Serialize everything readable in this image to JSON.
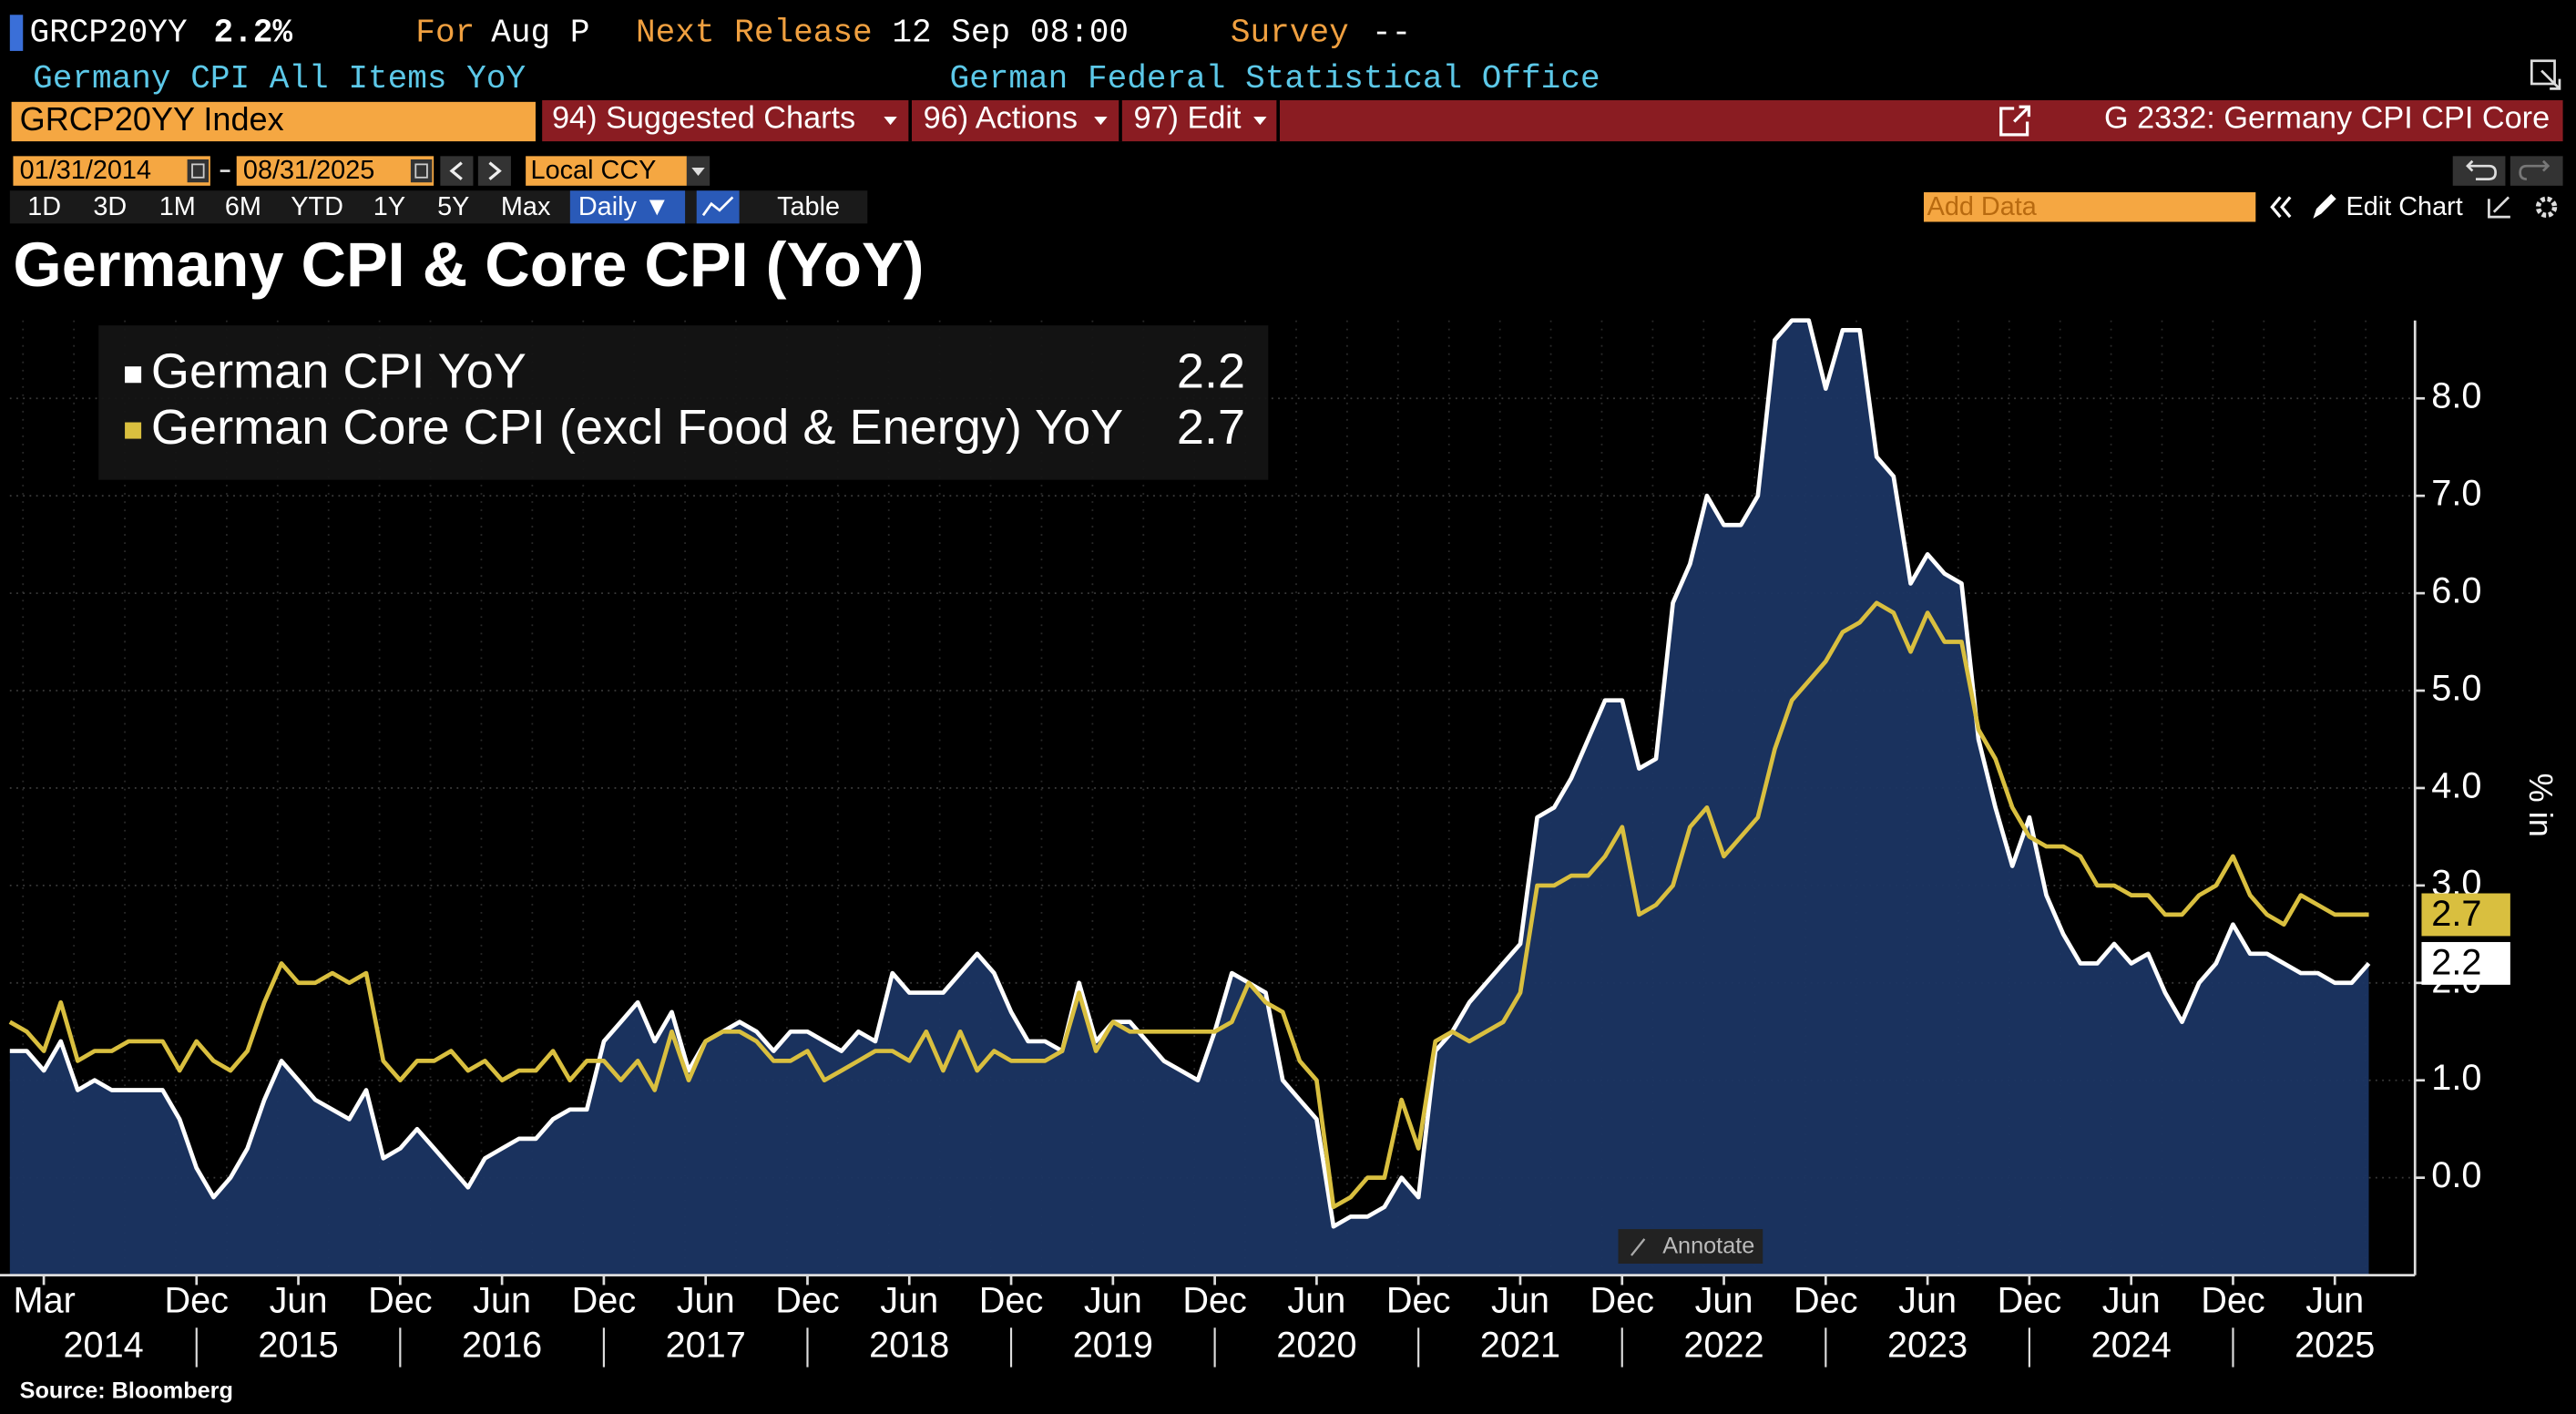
{
  "header": {
    "ticker": "GRCP20YY",
    "last": "2.2%",
    "for_label": "For",
    "period": "Aug P",
    "next_release_label": "Next Release",
    "next_release": "12 Sep 08:00",
    "survey_label": "Survey",
    "survey": "--",
    "description": "Germany CPI All Items YoY",
    "source_agency": "German Federal Statistical Office"
  },
  "command_bar": {
    "security": "GRCP20YY Index",
    "menus": [
      "94) Suggested Charts",
      "96) Actions",
      "97) Edit"
    ],
    "related": "G 2332: Germany CPI CPI Core"
  },
  "date_bar": {
    "start": "01/31/2014",
    "end": "08/31/2025",
    "currency": "Local CCY"
  },
  "toolbar": {
    "ranges": [
      "1D",
      "3D",
      "1M",
      "6M",
      "YTD",
      "1Y",
      "5Y",
      "Max"
    ],
    "frequency": "Daily ▼",
    "table": "Table",
    "add_data": "Add Data",
    "edit_chart": "Edit Chart"
  },
  "annotate": "Annotate",
  "chart_data": {
    "type": "line",
    "title": "Germany CPI & Core CPI (YoY)",
    "y_label": "% in",
    "legend": "upper left",
    "grid": true,
    "x": [
      "2014-01",
      "2014-02",
      "2014-03",
      "2014-04",
      "2014-05",
      "2014-06",
      "2014-07",
      "2014-08",
      "2014-09",
      "2014-10",
      "2014-11",
      "2014-12",
      "2015-01",
      "2015-02",
      "2015-03",
      "2015-04",
      "2015-05",
      "2015-06",
      "2015-07",
      "2015-08",
      "2015-09",
      "2015-10",
      "2015-11",
      "2015-12",
      "2016-01",
      "2016-02",
      "2016-03",
      "2016-04",
      "2016-05",
      "2016-06",
      "2016-07",
      "2016-08",
      "2016-09",
      "2016-10",
      "2016-11",
      "2016-12",
      "2017-01",
      "2017-02",
      "2017-03",
      "2017-04",
      "2017-05",
      "2017-06",
      "2017-07",
      "2017-08",
      "2017-09",
      "2017-10",
      "2017-11",
      "2017-12",
      "2018-01",
      "2018-02",
      "2018-03",
      "2018-04",
      "2018-05",
      "2018-06",
      "2018-07",
      "2018-08",
      "2018-09",
      "2018-10",
      "2018-11",
      "2018-12",
      "2019-01",
      "2019-02",
      "2019-03",
      "2019-04",
      "2019-05",
      "2019-06",
      "2019-07",
      "2019-08",
      "2019-09",
      "2019-10",
      "2019-11",
      "2019-12",
      "2020-01",
      "2020-02",
      "2020-03",
      "2020-04",
      "2020-05",
      "2020-06",
      "2020-07",
      "2020-08",
      "2020-09",
      "2020-10",
      "2020-11",
      "2020-12",
      "2021-01",
      "2021-02",
      "2021-03",
      "2021-04",
      "2021-05",
      "2021-06",
      "2021-07",
      "2021-08",
      "2021-09",
      "2021-10",
      "2021-11",
      "2021-12",
      "2022-01",
      "2022-02",
      "2022-03",
      "2022-04",
      "2022-05",
      "2022-06",
      "2022-07",
      "2022-08",
      "2022-09",
      "2022-10",
      "2022-11",
      "2022-12",
      "2023-01",
      "2023-02",
      "2023-03",
      "2023-04",
      "2023-05",
      "2023-06",
      "2023-07",
      "2023-08",
      "2023-09",
      "2023-10",
      "2023-11",
      "2023-12",
      "2024-01",
      "2024-02",
      "2024-03",
      "2024-04",
      "2024-05",
      "2024-06",
      "2024-07",
      "2024-08",
      "2024-09",
      "2024-10",
      "2024-11",
      "2024-12",
      "2025-01",
      "2025-02",
      "2025-03",
      "2025-04",
      "2025-05",
      "2025-06",
      "2025-07",
      "2025-08"
    ],
    "series": [
      {
        "name": "German CPI YoY",
        "color": "#ffffff",
        "fill": "#1b3563",
        "last_value": 2.2,
        "values": [
          1.3,
          1.3,
          1.1,
          1.4,
          0.9,
          1.0,
          0.9,
          0.9,
          0.9,
          0.9,
          0.6,
          0.1,
          -0.2,
          0.0,
          0.3,
          0.8,
          1.2,
          1.0,
          0.8,
          0.7,
          0.6,
          0.9,
          0.2,
          0.3,
          0.5,
          0.3,
          0.1,
          -0.1,
          0.2,
          0.3,
          0.4,
          0.4,
          0.6,
          0.7,
          0.7,
          1.4,
          1.6,
          1.8,
          1.4,
          1.7,
          1.1,
          1.4,
          1.5,
          1.6,
          1.5,
          1.3,
          1.5,
          1.5,
          1.4,
          1.3,
          1.5,
          1.4,
          2.1,
          1.9,
          1.9,
          1.9,
          2.1,
          2.3,
          2.1,
          1.7,
          1.4,
          1.4,
          1.3,
          2.0,
          1.4,
          1.6,
          1.6,
          1.4,
          1.2,
          1.1,
          1.0,
          1.5,
          2.1,
          2.0,
          1.9,
          1.0,
          0.8,
          0.6,
          -0.5,
          -0.4,
          -0.4,
          -0.3,
          0.0,
          -0.2,
          1.3,
          1.5,
          1.8,
          2.0,
          2.2,
          2.4,
          3.7,
          3.8,
          4.1,
          4.5,
          4.9,
          4.9,
          4.2,
          4.3,
          5.9,
          6.3,
          7.0,
          6.7,
          6.7,
          7.0,
          8.6,
          8.8,
          8.8,
          8.1,
          8.7,
          8.7,
          7.4,
          7.2,
          6.1,
          6.4,
          6.2,
          6.1,
          4.5,
          3.8,
          3.2,
          3.7,
          2.9,
          2.5,
          2.2,
          2.2,
          2.4,
          2.2,
          2.3,
          1.9,
          1.6,
          2.0,
          2.2,
          2.6,
          2.3,
          2.3,
          2.2,
          2.1,
          2.1,
          2.0,
          2.0,
          2.2
        ]
      },
      {
        "name": "German Core CPI (excl Food & Energy) YoY",
        "color": "#d9bf3f",
        "last_value": 2.7,
        "values": [
          1.6,
          1.5,
          1.3,
          1.8,
          1.2,
          1.3,
          1.3,
          1.4,
          1.4,
          1.4,
          1.1,
          1.4,
          1.2,
          1.1,
          1.3,
          1.8,
          2.2,
          2.0,
          2.0,
          2.1,
          2.0,
          2.1,
          1.2,
          1.0,
          1.2,
          1.2,
          1.3,
          1.1,
          1.2,
          1.0,
          1.1,
          1.1,
          1.3,
          1.0,
          1.2,
          1.2,
          1.0,
          1.2,
          0.9,
          1.5,
          1.0,
          1.4,
          1.5,
          1.5,
          1.4,
          1.2,
          1.2,
          1.3,
          1.0,
          1.1,
          1.2,
          1.3,
          1.3,
          1.2,
          1.5,
          1.1,
          1.5,
          1.1,
          1.3,
          1.2,
          1.2,
          1.2,
          1.3,
          1.9,
          1.3,
          1.6,
          1.5,
          1.5,
          1.5,
          1.5,
          1.5,
          1.5,
          1.6,
          2.0,
          1.8,
          1.7,
          1.2,
          1.0,
          -0.3,
          -0.2,
          0.0,
          0.0,
          0.8,
          0.3,
          1.4,
          1.5,
          1.4,
          1.5,
          1.6,
          1.9,
          3.0,
          3.0,
          3.1,
          3.1,
          3.3,
          3.6,
          2.7,
          2.8,
          3.0,
          3.6,
          3.8,
          3.3,
          3.5,
          3.7,
          4.4,
          4.9,
          5.1,
          5.3,
          5.6,
          5.7,
          5.9,
          5.8,
          5.4,
          5.8,
          5.5,
          5.5,
          4.6,
          4.3,
          3.8,
          3.5,
          3.4,
          3.4,
          3.3,
          3.0,
          3.0,
          2.9,
          2.9,
          2.7,
          2.7,
          2.9,
          3.0,
          3.3,
          2.9,
          2.7,
          2.6,
          2.9,
          2.8,
          2.7,
          2.7,
          2.7
        ]
      }
    ],
    "ylim": [
      -1,
      8.8
    ],
    "yticks": [
      {
        "value": 0,
        "label": "0.0"
      },
      {
        "value": 1,
        "label": "1.0"
      },
      {
        "value": 2,
        "label": "2.0"
      },
      {
        "value": 3,
        "label": "3.0"
      },
      {
        "value": 4,
        "label": "4.0"
      },
      {
        "value": 5,
        "label": "5.0"
      },
      {
        "value": 6,
        "label": "6.0"
      },
      {
        "value": 7,
        "label": "7.0"
      },
      {
        "value": 8,
        "label": "8.0"
      }
    ],
    "xticks": [
      {
        "value": "2014-03",
        "label": "Mar"
      },
      {
        "value": "2014-12",
        "label": "Dec"
      },
      {
        "value": "2015-06",
        "label": "Jun"
      },
      {
        "value": "2015-12",
        "label": "Dec"
      },
      {
        "value": "2016-06",
        "label": "Jun"
      },
      {
        "value": "2016-12",
        "label": "Dec"
      },
      {
        "value": "2017-06",
        "label": "Jun"
      },
      {
        "value": "2017-12",
        "label": "Dec"
      },
      {
        "value": "2018-06",
        "label": "Jun"
      },
      {
        "value": "2018-12",
        "label": "Dec"
      },
      {
        "value": "2019-06",
        "label": "Jun"
      },
      {
        "value": "2019-12",
        "label": "Dec"
      },
      {
        "value": "2020-06",
        "label": "Jun"
      },
      {
        "value": "2020-12",
        "label": "Dec"
      },
      {
        "value": "2021-06",
        "label": "Jun"
      },
      {
        "value": "2021-12",
        "label": "Dec"
      },
      {
        "value": "2022-06",
        "label": "Jun"
      },
      {
        "value": "2022-12",
        "label": "Dec"
      },
      {
        "value": "2023-06",
        "label": "Jun"
      },
      {
        "value": "2023-12",
        "label": "Dec"
      },
      {
        "value": "2024-06",
        "label": "Jun"
      },
      {
        "value": "2024-12",
        "label": "Dec"
      },
      {
        "value": "2025-06",
        "label": "Jun"
      }
    ],
    "year_labels": [
      {
        "value": "2014-06",
        "label": "2014"
      },
      {
        "value": "2015-06",
        "label": "2015"
      },
      {
        "value": "2016-06",
        "label": "2016"
      },
      {
        "value": "2017-06",
        "label": "2017"
      },
      {
        "value": "2018-06",
        "label": "2018"
      },
      {
        "value": "2019-06",
        "label": "2019"
      },
      {
        "value": "2020-06",
        "label": "2020"
      },
      {
        "value": "2021-06",
        "label": "2021"
      },
      {
        "value": "2022-06",
        "label": "2022"
      },
      {
        "value": "2023-06",
        "label": "2023"
      },
      {
        "value": "2024-06",
        "label": "2024"
      },
      {
        "value": "2025-06",
        "label": "2025"
      }
    ]
  },
  "source": "Source: Bloomberg"
}
